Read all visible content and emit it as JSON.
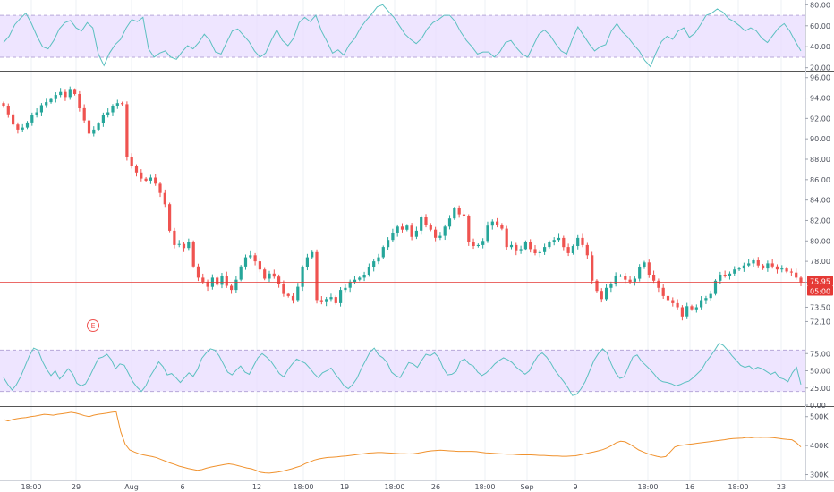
{
  "colors": {
    "up": "#26a69a",
    "down": "#ef5350",
    "rsi_line": "#5bc0c0",
    "rsi_band": "#e8dcff",
    "volume_line": "#f0922e",
    "price_line": "#e53935",
    "grid": "#eef0f4",
    "divider": "#555555"
  },
  "chart_data": [
    {
      "type": "line",
      "panel": "top-oscillator",
      "y_ticks": [
        "80.00",
        "60.00",
        "40.00",
        "20.00"
      ],
      "ylim": [
        18,
        82
      ],
      "band": [
        30,
        70
      ],
      "series": [
        {
          "values": [
            44,
            50,
            61,
            67,
            72,
            62,
            50,
            40,
            38,
            46,
            57,
            63,
            65,
            58,
            55,
            63,
            58,
            33,
            22,
            34,
            42,
            47,
            58,
            66,
            64,
            68,
            38,
            30,
            34,
            36,
            30,
            28,
            35,
            41,
            38,
            44,
            52,
            46,
            35,
            33,
            44,
            55,
            57,
            51,
            45,
            36,
            30,
            34,
            46,
            56,
            46,
            41,
            48,
            63,
            68,
            64,
            70,
            55,
            45,
            34,
            37,
            32,
            42,
            48,
            58,
            65,
            71,
            78,
            80,
            74,
            68,
            60,
            52,
            47,
            43,
            48,
            57,
            63,
            66,
            70,
            70,
            64,
            54,
            46,
            40,
            33,
            35,
            35,
            30,
            35,
            44,
            46,
            39,
            33,
            30,
            41,
            52,
            56,
            51,
            43,
            36,
            33,
            47,
            59,
            51,
            43,
            36,
            40,
            42,
            55,
            62,
            54,
            49,
            42,
            36,
            27,
            21,
            34,
            45,
            50,
            47,
            55,
            58,
            49,
            53,
            61,
            70,
            72,
            76,
            73,
            67,
            64,
            60,
            55,
            58,
            55,
            48,
            44,
            51,
            58,
            62,
            55,
            45,
            36
          ]
        }
      ]
    },
    {
      "type": "candlestick",
      "panel": "price",
      "y_ticks": [
        "96.00",
        "94.00",
        "92.00",
        "90.00",
        "88.00",
        "86.00",
        "84.00",
        "82.00",
        "80.00",
        "78.00",
        "75.95",
        "73.50",
        "72.10"
      ],
      "ylim": [
        71.0,
        96.5
      ],
      "current_price": "75.95",
      "countdown": "05:00",
      "marker": "E",
      "x_labels": [
        "18:00",
        "29",
        "Aug",
        "6",
        "12",
        "18:00",
        "19",
        "18:00",
        "26",
        "18:00",
        "Sep",
        "9",
        "18:00",
        "16",
        "18:00",
        "23"
      ],
      "series": [
        {
          "values": [
            93.2,
            92.4,
            91.4,
            90.9,
            91.1,
            91.6,
            92.3,
            92.6,
            93.3,
            93.6,
            93.9,
            94.3,
            94.6,
            94.1,
            94.8,
            94.4,
            93.0,
            91.8,
            90.5,
            90.9,
            91.5,
            92.3,
            92.6,
            93.2,
            93.5,
            93.4,
            88.2,
            87.3,
            86.7,
            86.1,
            85.9,
            86.2,
            85.6,
            84.7,
            83.6,
            81.0,
            79.6,
            79.7,
            79.3,
            79.9,
            77.5,
            76.4,
            76.0,
            75.5,
            76.4,
            75.7,
            76.6,
            75.6,
            75.2,
            76.2,
            77.5,
            78.4,
            78.6,
            78.0,
            77.2,
            76.3,
            76.8,
            76.5,
            75.8,
            74.8,
            74.6,
            74.2,
            75.5,
            77.4,
            78.4,
            78.9,
            74.2,
            74.0,
            74.3,
            74.5,
            73.9,
            75.2,
            75.4,
            76.0,
            76.2,
            76.4,
            76.7,
            77.4,
            78.0,
            78.4,
            79.4,
            80.1,
            80.8,
            81.4,
            81.1,
            81.5,
            80.4,
            81.0,
            82.3,
            81.6,
            81.1,
            80.3,
            80.5,
            81.4,
            82.2,
            83.2,
            82.6,
            82.4,
            79.9,
            79.5,
            79.6,
            80.0,
            81.5,
            81.9,
            81.6,
            81.2,
            79.4,
            79.6,
            79.0,
            79.2,
            79.9,
            79.2,
            78.8,
            78.9,
            79.4,
            79.9,
            80.1,
            80.3,
            79.4,
            78.8,
            79.5,
            80.3,
            79.6,
            78.6,
            76.1,
            75.1,
            74.3,
            75.4,
            75.8,
            76.6,
            76.6,
            76.2,
            76.0,
            76.3,
            77.4,
            77.9,
            76.7,
            76.1,
            75.4,
            74.6,
            74.2,
            73.9,
            73.5,
            72.6,
            73.6,
            73.3,
            73.5,
            74.2,
            74.4,
            74.8,
            76.1,
            76.7,
            76.6,
            76.8,
            77.2,
            77.3,
            77.6,
            77.8,
            78.1,
            77.6,
            77.3,
            77.8,
            77.5,
            77.2,
            77.3,
            77.0,
            76.9,
            76.4,
            75.95
          ]
        }
      ]
    },
    {
      "type": "line",
      "panel": "rsi",
      "y_ticks": [
        "75.00",
        "50.00",
        "25.00",
        "0.00"
      ],
      "ylim": [
        0,
        100
      ],
      "band": [
        20,
        80
      ],
      "series": [
        {
          "values": [
            40,
            30,
            22,
            30,
            42,
            57,
            72,
            83,
            80,
            64,
            52,
            43,
            50,
            38,
            45,
            53,
            46,
            32,
            28,
            31,
            42,
            55,
            68,
            70,
            74,
            66,
            53,
            60,
            58,
            46,
            34,
            26,
            20,
            28,
            42,
            52,
            63,
            56,
            44,
            46,
            40,
            33,
            40,
            47,
            42,
            52,
            68,
            76,
            82,
            80,
            72,
            60,
            48,
            44,
            51,
            57,
            48,
            45,
            57,
            69,
            75,
            70,
            64,
            55,
            46,
            41,
            52,
            60,
            67,
            64,
            61,
            54,
            46,
            40,
            47,
            50,
            54,
            45,
            37,
            28,
            24,
            30,
            39,
            53,
            65,
            77,
            83,
            73,
            69,
            62,
            48,
            43,
            40,
            51,
            62,
            60,
            55,
            65,
            74,
            72,
            76,
            69,
            54,
            44,
            45,
            49,
            64,
            67,
            60,
            57,
            48,
            43,
            47,
            53,
            60,
            65,
            69,
            66,
            62,
            55,
            50,
            45,
            50,
            62,
            72,
            76,
            70,
            61,
            50,
            42,
            34,
            25,
            14,
            16,
            24,
            35,
            50,
            65,
            75,
            82,
            76,
            60,
            47,
            39,
            41,
            56,
            70,
            73,
            64,
            58,
            52,
            45,
            37,
            34,
            33,
            31,
            28,
            30,
            33,
            35,
            40,
            46,
            52,
            63,
            71,
            80,
            90,
            87,
            80,
            72,
            65,
            58,
            55,
            57,
            52,
            55,
            53,
            49,
            45,
            48,
            40,
            38,
            34,
            47,
            55,
            30
          ]
        }
      ]
    },
    {
      "type": "line",
      "panel": "volume",
      "y_ticks": [
        "500K",
        "400K",
        "300K"
      ],
      "ylim": [
        280000,
        530000
      ],
      "series": [
        {
          "values": [
            490000,
            485000,
            490000,
            493000,
            495000,
            497000,
            500000,
            502000,
            505000,
            508000,
            507000,
            505000,
            508000,
            510000,
            512000,
            515000,
            512000,
            508000,
            503000,
            500000,
            505000,
            508000,
            510000,
            512000,
            515000,
            517000,
            448000,
            405000,
            385000,
            378000,
            372000,
            368000,
            365000,
            362000,
            358000,
            352000,
            346000,
            340000,
            335000,
            329000,
            325000,
            321000,
            318000,
            315000,
            317000,
            322000,
            326000,
            329000,
            332000,
            335000,
            337000,
            335000,
            331000,
            327000,
            323000,
            320000,
            315000,
            308000,
            306000,
            305000,
            307000,
            309000,
            312000,
            316000,
            320000,
            325000,
            330000,
            338000,
            344000,
            350000,
            354000,
            357000,
            359000,
            360000,
            361000,
            363000,
            364000,
            366000,
            368000,
            370000,
            372000,
            374000,
            375000,
            376000,
            376000,
            375000,
            374000,
            373000,
            372000,
            372000,
            371000,
            372000,
            374000,
            377000,
            380000,
            382000,
            383000,
            384000,
            383000,
            382000,
            381000,
            380000,
            380000,
            380000,
            380000,
            379000,
            377000,
            375000,
            374000,
            373000,
            372000,
            371000,
            370000,
            370000,
            369000,
            368000,
            368000,
            368000,
            367000,
            366000,
            366000,
            365000,
            364000,
            364000,
            363000,
            363000,
            364000,
            365000,
            368000,
            371000,
            375000,
            378000,
            382000,
            386000,
            392000,
            400000,
            410000,
            415000,
            413000,
            405000,
            395000,
            385000,
            378000,
            372000,
            367000,
            363000,
            360000,
            362000,
            378000,
            395000,
            400000,
            402000,
            404000,
            406000,
            408000,
            410000,
            412000,
            414000,
            416000,
            418000,
            420000,
            423000,
            424000,
            425000,
            426000,
            428000,
            427000,
            429000,
            428000,
            429000,
            428000,
            427000,
            425000,
            423000,
            421000,
            420000,
            410000,
            395000
          ]
        }
      ]
    }
  ]
}
